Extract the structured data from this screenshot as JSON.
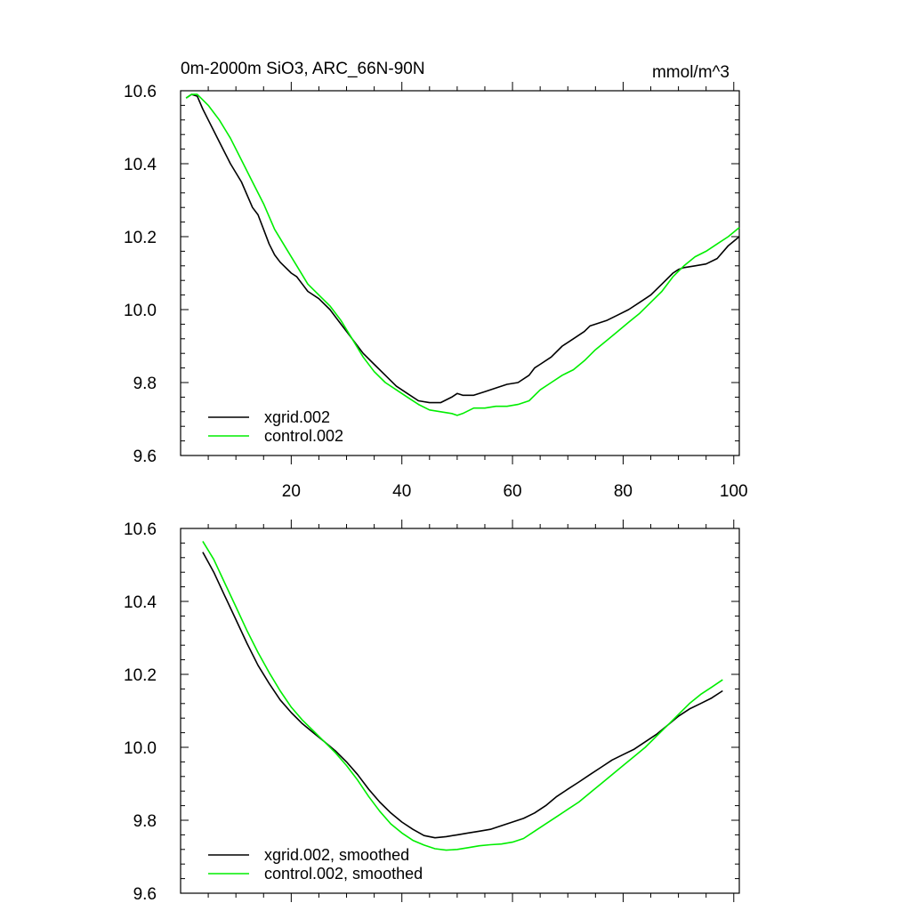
{
  "colors": {
    "series_a": "#000000",
    "series_b": "#00ee00",
    "axis": "#000000"
  },
  "chart_data": [
    {
      "type": "line",
      "title": "0m-2000m SiO3, ARC_66N-90N",
      "units": "mmol/m^3",
      "xlim": [
        0,
        101
      ],
      "ylim": [
        9.6,
        10.6
      ],
      "x_ticks": [
        20,
        40,
        60,
        80,
        100
      ],
      "x_tick_labels": [
        "20",
        "40",
        "60",
        "80",
        "100"
      ],
      "y_ticks": [
        9.6,
        9.8,
        10.0,
        10.2,
        10.4,
        10.6
      ],
      "y_tick_labels": [
        "9.6",
        "9.8",
        "10.0",
        "10.2",
        "10.4",
        "10.6"
      ],
      "legend_position": "bottom-left",
      "series": [
        {
          "name": "xgrid.002",
          "x": [
            1,
            2,
            3,
            4,
            5,
            7,
            9,
            11,
            13,
            14,
            15,
            16,
            17,
            18,
            20,
            21,
            22,
            23,
            25,
            27,
            29,
            31,
            33,
            35,
            37,
            39,
            41,
            43,
            45,
            47,
            49,
            50,
            51,
            53,
            55,
            57,
            59,
            61,
            63,
            64,
            65,
            67,
            69,
            71,
            73,
            74,
            75,
            77,
            79,
            81,
            83,
            85,
            87,
            89,
            90,
            91,
            93,
            95,
            97,
            99,
            101
          ],
          "values": [
            10.58,
            10.59,
            10.585,
            10.55,
            10.52,
            10.46,
            10.4,
            10.35,
            10.28,
            10.26,
            10.22,
            10.18,
            10.15,
            10.13,
            10.1,
            10.09,
            10.07,
            10.05,
            10.03,
            10.0,
            9.96,
            9.92,
            9.88,
            9.85,
            9.82,
            9.79,
            9.77,
            9.75,
            9.745,
            9.745,
            9.76,
            9.77,
            9.765,
            9.765,
            9.775,
            9.785,
            9.795,
            9.8,
            9.82,
            9.84,
            9.85,
            9.87,
            9.9,
            9.92,
            9.94,
            9.955,
            9.96,
            9.97,
            9.985,
            10.0,
            10.02,
            10.04,
            10.07,
            10.1,
            10.11,
            10.115,
            10.12,
            10.125,
            10.14,
            10.175,
            10.2
          ]
        },
        {
          "name": "control.002",
          "x": [
            1,
            2,
            3,
            5,
            7,
            9,
            11,
            13,
            15,
            17,
            19,
            21,
            23,
            25,
            27,
            29,
            31,
            33,
            35,
            37,
            39,
            41,
            43,
            45,
            47,
            49,
            50,
            51,
            53,
            55,
            57,
            59,
            61,
            63,
            65,
            67,
            69,
            71,
            73,
            75,
            77,
            79,
            81,
            83,
            85,
            87,
            89,
            91,
            93,
            95,
            97,
            99,
            101
          ],
          "values": [
            10.58,
            10.59,
            10.59,
            10.56,
            10.52,
            10.47,
            10.41,
            10.35,
            10.29,
            10.22,
            10.17,
            10.12,
            10.07,
            10.04,
            10.01,
            9.97,
            9.92,
            9.87,
            9.83,
            9.8,
            9.78,
            9.76,
            9.74,
            9.725,
            9.72,
            9.715,
            9.71,
            9.715,
            9.73,
            9.73,
            9.735,
            9.735,
            9.74,
            9.75,
            9.78,
            9.8,
            9.82,
            9.835,
            9.86,
            9.89,
            9.915,
            9.94,
            9.965,
            9.99,
            10.02,
            10.05,
            10.09,
            10.12,
            10.145,
            10.16,
            10.18,
            10.2,
            10.225
          ]
        }
      ]
    },
    {
      "type": "line",
      "title": "",
      "xlim": [
        0,
        101
      ],
      "ylim": [
        9.6,
        10.6
      ],
      "x_ticks": [
        20,
        40,
        60,
        80,
        100
      ],
      "y_ticks": [
        9.6,
        9.8,
        10.0,
        10.2,
        10.4,
        10.6
      ],
      "y_tick_labels": [
        "9.6",
        "9.8",
        "10.0",
        "10.2",
        "10.4",
        "10.6"
      ],
      "legend_position": "bottom-left",
      "series": [
        {
          "name": "xgrid.002, smoothed",
          "x": [
            4,
            6,
            8,
            10,
            12,
            14,
            16,
            18,
            20,
            22,
            24,
            26,
            28,
            30,
            32,
            34,
            36,
            38,
            40,
            42,
            44,
            46,
            48,
            50,
            52,
            54,
            56,
            58,
            60,
            62,
            64,
            66,
            68,
            70,
            72,
            74,
            76,
            78,
            80,
            82,
            84,
            86,
            88,
            90,
            92,
            94,
            96,
            98
          ],
          "values": [
            10.535,
            10.48,
            10.415,
            10.35,
            10.285,
            10.225,
            10.175,
            10.13,
            10.095,
            10.065,
            10.04,
            10.015,
            9.99,
            9.96,
            9.925,
            9.885,
            9.85,
            9.82,
            9.795,
            9.775,
            9.758,
            9.752,
            9.755,
            9.76,
            9.765,
            9.77,
            9.775,
            9.785,
            9.795,
            9.805,
            9.82,
            9.84,
            9.865,
            9.885,
            9.905,
            9.925,
            9.945,
            9.965,
            9.98,
            9.995,
            10.015,
            10.035,
            10.06,
            10.085,
            10.105,
            10.12,
            10.135,
            10.155
          ]
        },
        {
          "name": "control.002, smoothed",
          "x": [
            4,
            6,
            8,
            10,
            12,
            14,
            16,
            18,
            20,
            22,
            24,
            26,
            28,
            30,
            32,
            34,
            36,
            38,
            40,
            42,
            44,
            46,
            48,
            50,
            52,
            54,
            56,
            58,
            60,
            62,
            64,
            66,
            68,
            70,
            72,
            74,
            76,
            78,
            80,
            82,
            84,
            86,
            88,
            90,
            92,
            94,
            96,
            98
          ],
          "values": [
            10.565,
            10.515,
            10.45,
            10.385,
            10.32,
            10.26,
            10.205,
            10.155,
            10.11,
            10.075,
            10.045,
            10.015,
            9.985,
            9.95,
            9.91,
            9.865,
            9.825,
            9.79,
            9.765,
            9.745,
            9.732,
            9.722,
            9.718,
            9.72,
            9.725,
            9.73,
            9.733,
            9.735,
            9.74,
            9.75,
            9.77,
            9.79,
            9.81,
            9.83,
            9.85,
            9.875,
            9.9,
            9.925,
            9.95,
            9.975,
            10.0,
            10.03,
            10.06,
            10.09,
            10.12,
            10.145,
            10.165,
            10.185
          ]
        }
      ]
    }
  ]
}
